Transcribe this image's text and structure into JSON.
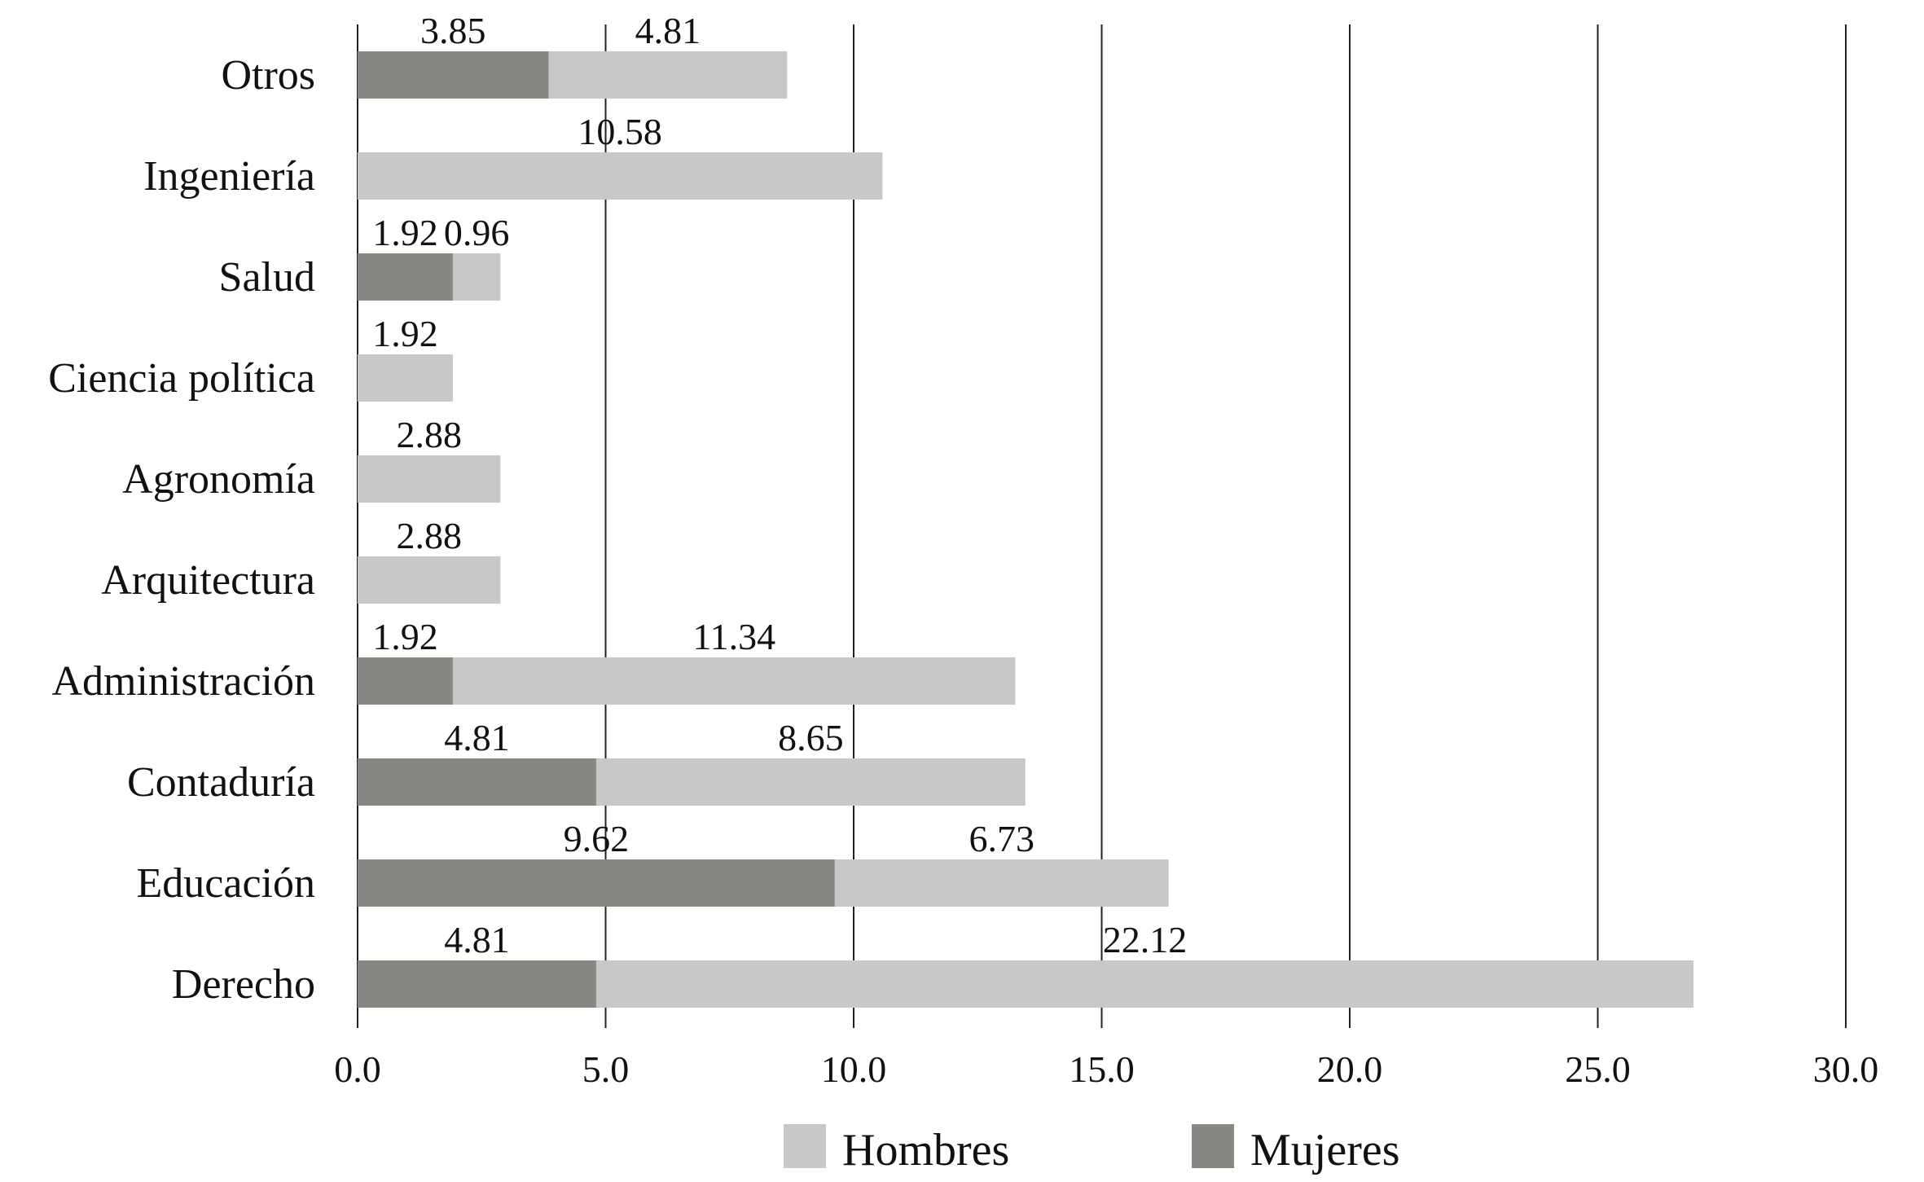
{
  "chart_data": {
    "type": "bar",
    "orientation": "horizontal",
    "stacked": true,
    "title": "",
    "xlabel": "",
    "ylabel": "",
    "xlim": [
      0,
      30
    ],
    "xticks": [
      "0.0",
      "5.0",
      "10.0",
      "15.0",
      "20.0",
      "25.0",
      "30.0"
    ],
    "grid": "vertical",
    "legend_position": "bottom",
    "categories": [
      "Otros",
      "Ingeniería",
      "Salud",
      "Ciencia política",
      "Agronomía",
      "Arquitectura",
      "Administración",
      "Contaduría",
      "Educación",
      "Derecho"
    ],
    "series": [
      {
        "name": "Mujeres",
        "color": "#878784",
        "values": [
          3.85,
          null,
          1.92,
          null,
          null,
          null,
          1.92,
          4.81,
          9.62,
          4.81
        ]
      },
      {
        "name": "Hombres",
        "color": "#c8c8c8",
        "values": [
          4.81,
          10.58,
          0.96,
          1.92,
          2.88,
          2.88,
          11.34,
          8.65,
          6.73,
          22.12
        ]
      }
    ],
    "legend": [
      "Hombres",
      "Mujeres"
    ]
  }
}
